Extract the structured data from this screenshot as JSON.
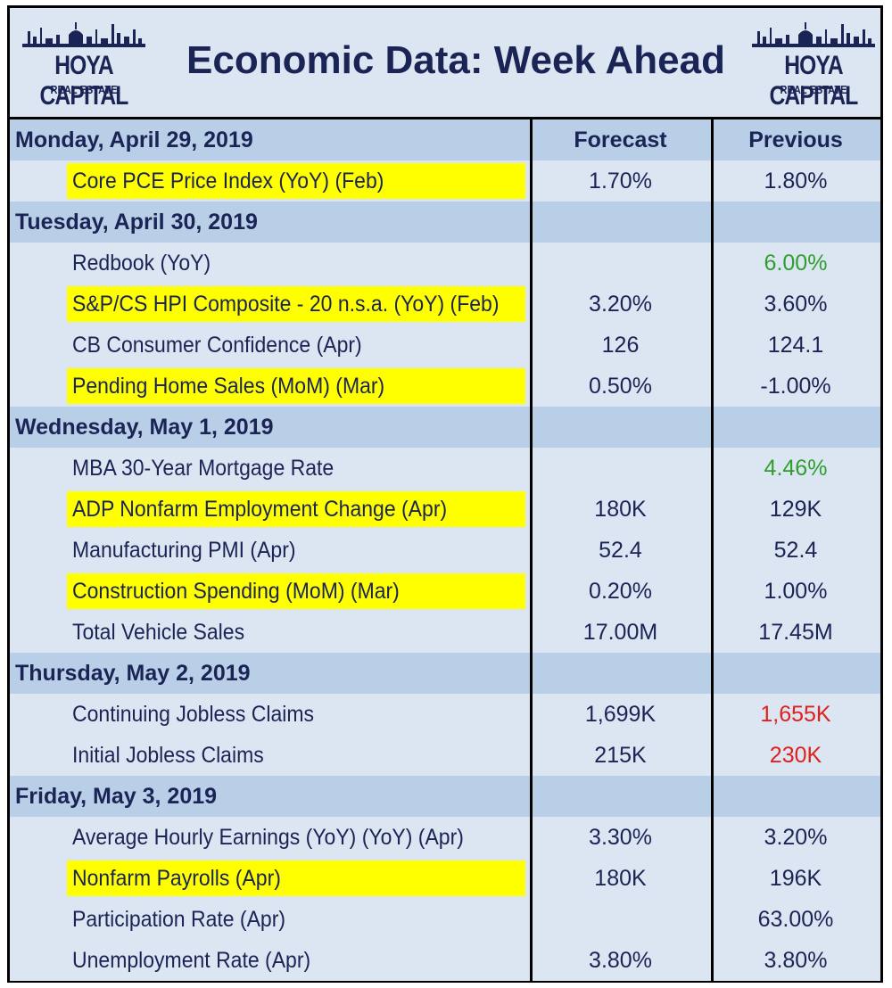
{
  "header": {
    "title": "Economic Data: Week Ahead",
    "logo_brand": "HOYA CAPITAL",
    "logo_sub": "REAL ESTATE"
  },
  "columns": {
    "forecast": "Forecast",
    "previous": "Previous"
  },
  "colors": {
    "navy": "#1a2455",
    "row_light": "#dce6f2",
    "row_dark": "#b9cfe8",
    "highlight": "#ffff00",
    "green": "#2e9e2e",
    "red": "#e0201b"
  },
  "days": [
    {
      "date": "Monday, April 29, 2019",
      "rows": [
        {
          "name": "Core PCE Price Index (YoY) (Feb)",
          "forecast": "1.70%",
          "previous": "1.80%",
          "highlight": true,
          "prev_color": ""
        }
      ]
    },
    {
      "date": "Tuesday, April 30, 2019",
      "rows": [
        {
          "name": "Redbook (YoY)",
          "forecast": "",
          "previous": "6.00%",
          "highlight": false,
          "prev_color": "green"
        },
        {
          "name": "S&P/CS HPI Composite - 20 n.s.a. (YoY) (Feb)",
          "forecast": "3.20%",
          "previous": "3.60%",
          "highlight": true,
          "prev_color": ""
        },
        {
          "name": "CB Consumer Confidence (Apr)",
          "forecast": "126",
          "previous": "124.1",
          "highlight": false,
          "prev_color": ""
        },
        {
          "name": "Pending Home Sales (MoM) (Mar)",
          "forecast": "0.50%",
          "previous": "-1.00%",
          "highlight": true,
          "prev_color": ""
        }
      ]
    },
    {
      "date": "Wednesday, May 1, 2019",
      "rows": [
        {
          "name": "MBA 30-Year Mortgage Rate",
          "forecast": "",
          "previous": "4.46%",
          "highlight": false,
          "prev_color": "green"
        },
        {
          "name": "ADP Nonfarm Employment Change (Apr)",
          "forecast": "180K",
          "previous": "129K",
          "highlight": true,
          "prev_color": ""
        },
        {
          "name": "Manufacturing PMI (Apr)",
          "forecast": "52.4",
          "previous": "52.4",
          "highlight": false,
          "prev_color": ""
        },
        {
          "name": "Construction Spending (MoM) (Mar)",
          "forecast": "0.20%",
          "previous": "1.00%",
          "highlight": true,
          "prev_color": ""
        },
        {
          "name": "Total Vehicle Sales",
          "forecast": "17.00M",
          "previous": "17.45M",
          "highlight": false,
          "prev_color": ""
        }
      ]
    },
    {
      "date": "Thursday, May 2, 2019",
      "rows": [
        {
          "name": "Continuing Jobless Claims",
          "forecast": "1,699K",
          "previous": "1,655K",
          "highlight": false,
          "prev_color": "red"
        },
        {
          "name": "Initial Jobless Claims",
          "forecast": "215K",
          "previous": "230K",
          "highlight": false,
          "prev_color": "red"
        }
      ]
    },
    {
      "date": "Friday, May 3, 2019",
      "rows": [
        {
          "name": "Average Hourly Earnings (YoY) (YoY) (Apr)",
          "forecast": "3.30%",
          "previous": "3.20%",
          "highlight": false,
          "prev_color": ""
        },
        {
          "name": "Nonfarm Payrolls (Apr)",
          "forecast": "180K",
          "previous": "196K",
          "highlight": true,
          "prev_color": ""
        },
        {
          "name": "Participation Rate (Apr)",
          "forecast": "",
          "previous": "63.00%",
          "highlight": false,
          "prev_color": ""
        },
        {
          "name": "Unemployment Rate (Apr)",
          "forecast": "3.80%",
          "previous": "3.80%",
          "highlight": false,
          "prev_color": ""
        }
      ]
    }
  ]
}
